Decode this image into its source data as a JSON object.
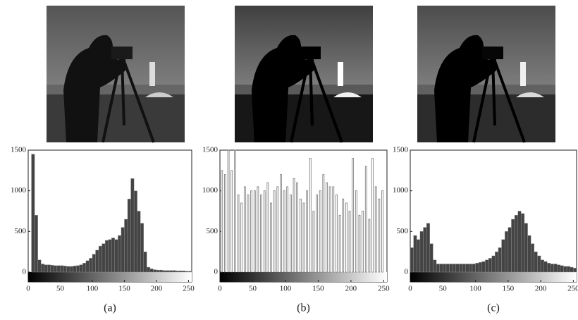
{
  "chart_data": [
    {
      "type": "histogram",
      "caption": "(a)",
      "color": "#444",
      "bins": [
        0,
        5,
        10,
        15,
        20,
        25,
        30,
        35,
        40,
        45,
        50,
        55,
        60,
        65,
        70,
        75,
        80,
        85,
        90,
        95,
        100,
        105,
        110,
        115,
        120,
        125,
        130,
        135,
        140,
        145,
        150,
        155,
        160,
        165,
        170,
        175,
        180,
        185,
        190,
        195,
        200,
        205,
        210,
        215,
        220,
        225,
        230,
        235,
        240,
        245,
        250,
        255
      ],
      "values": [
        0,
        1450,
        700,
        150,
        100,
        90,
        90,
        85,
        80,
        80,
        80,
        75,
        70,
        70,
        75,
        80,
        90,
        110,
        140,
        170,
        220,
        270,
        320,
        350,
        390,
        400,
        420,
        400,
        450,
        550,
        650,
        900,
        1150,
        1000,
        750,
        600,
        250,
        60,
        40,
        30,
        25,
        25,
        20,
        20,
        20,
        20,
        15,
        15,
        15,
        10,
        10
      ],
      "xlim": [
        0,
        255
      ],
      "ylim": [
        0,
        1500
      ],
      "xticks": [
        0,
        50,
        100,
        150,
        200,
        250
      ],
      "yticks": [
        0,
        500,
        1000,
        1500
      ]
    },
    {
      "type": "bar",
      "caption": "(b)",
      "color": "#666",
      "x": [
        3,
        8,
        13,
        18,
        23,
        28,
        33,
        38,
        43,
        48,
        53,
        58,
        63,
        68,
        73,
        78,
        83,
        88,
        93,
        98,
        103,
        108,
        113,
        118,
        123,
        128,
        133,
        138,
        143,
        148,
        153,
        158,
        163,
        168,
        173,
        178,
        183,
        188,
        193,
        198,
        203,
        208,
        213,
        218,
        223,
        228,
        233,
        238,
        243,
        248
      ],
      "values": [
        1250,
        1200,
        1500,
        1250,
        1500,
        950,
        850,
        1050,
        950,
        1000,
        1000,
        1050,
        950,
        1000,
        1100,
        850,
        1000,
        1050,
        1200,
        1000,
        1050,
        950,
        1150,
        1100,
        900,
        850,
        1000,
        1400,
        750,
        950,
        1000,
        1200,
        1100,
        1050,
        1050,
        950,
        700,
        900,
        850,
        750,
        1400,
        1000,
        700,
        750,
        1300,
        650,
        1400,
        1050,
        900,
        1000
      ],
      "xlim": [
        0,
        255
      ],
      "ylim": [
        0,
        1500
      ],
      "xticks": [
        0,
        50,
        100,
        150,
        200,
        250
      ],
      "yticks": [
        0,
        500,
        1000,
        1500
      ]
    },
    {
      "type": "histogram",
      "caption": "(c)",
      "color": "#444",
      "bins": [
        0,
        5,
        10,
        15,
        20,
        25,
        30,
        35,
        40,
        45,
        50,
        55,
        60,
        65,
        70,
        75,
        80,
        85,
        90,
        95,
        100,
        105,
        110,
        115,
        120,
        125,
        130,
        135,
        140,
        145,
        150,
        155,
        160,
        165,
        170,
        175,
        180,
        185,
        190,
        195,
        200,
        205,
        210,
        215,
        220,
        225,
        230,
        235,
        240,
        245,
        250,
        255
      ],
      "values": [
        300,
        450,
        400,
        500,
        550,
        600,
        350,
        150,
        100,
        100,
        100,
        100,
        100,
        100,
        100,
        100,
        100,
        100,
        100,
        100,
        110,
        120,
        130,
        150,
        170,
        200,
        250,
        300,
        400,
        500,
        550,
        650,
        700,
        750,
        720,
        600,
        450,
        350,
        250,
        200,
        150,
        130,
        110,
        100,
        100,
        90,
        80,
        70,
        70,
        60,
        50
      ],
      "xlim": [
        0,
        255
      ],
      "ylim": [
        0,
        1500
      ],
      "xticks": [
        0,
        50,
        100,
        150,
        200,
        250
      ],
      "yticks": [
        0,
        500,
        1000,
        1500
      ]
    }
  ]
}
